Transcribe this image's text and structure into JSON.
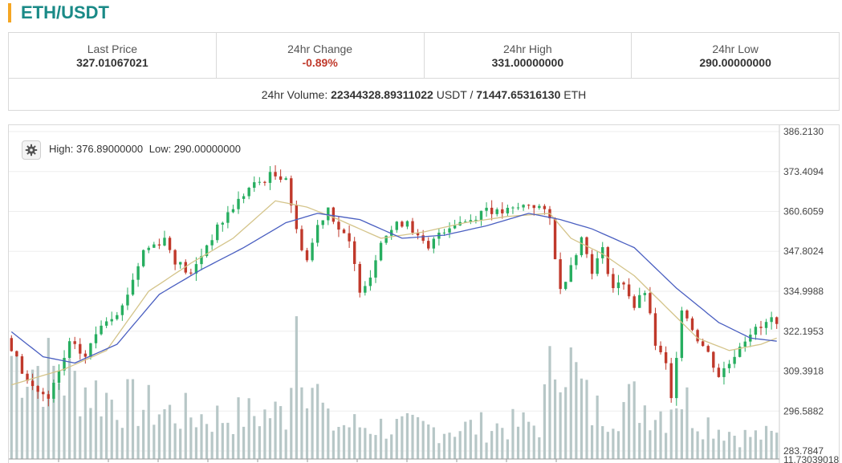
{
  "header": {
    "pair": "ETH/USDT",
    "accent_color": "#f5a623",
    "title_color": "#1a8a87"
  },
  "stats": {
    "last_price_label": "Last Price",
    "last_price_value": "327.01067021",
    "change_label": "24hr Change",
    "change_value": "-0.89%",
    "high_label": "24hr High",
    "high_value": "331.00000000",
    "low_label": "24hr Low",
    "low_value": "290.00000000"
  },
  "volume": {
    "label": "24hr Volume:",
    "usdt_value": "22344328.89311022",
    "usdt_unit": "USDT /",
    "eth_value": "71447.65316130",
    "eth_unit": "ETH"
  },
  "chart": {
    "settings_icon": "gear-icon",
    "high_text": "High: 376.89000000",
    "low_text": "Low: 290.00000000",
    "y_ticks": [
      "386.2130",
      "373.4094",
      "360.6059",
      "347.8024",
      "334.9988",
      "322.1953",
      "309.3918",
      "296.5882",
      "283.7847"
    ],
    "bottom_tick": "11.73039018",
    "colors": {
      "up": "#27ae60",
      "down": "#c0392b",
      "ma_fast": "#d4c48a",
      "ma_slow": "#4a5fc1",
      "volume": "#b7c7c7"
    }
  },
  "chart_data": {
    "type": "candlestick",
    "title": "ETH/USDT",
    "y_range": [
      283.7847,
      386.213
    ],
    "y_tick_values": [
      386.213,
      373.4094,
      360.6059,
      347.8024,
      334.9988,
      322.1953,
      309.3918,
      296.5882,
      283.7847
    ],
    "high": 376.89,
    "low": 290.0,
    "price_path": [
      [
        0,
        320
      ],
      [
        4,
        306
      ],
      [
        8,
        300
      ],
      [
        12,
        318
      ],
      [
        15,
        314
      ],
      [
        18,
        325
      ],
      [
        22,
        330
      ],
      [
        26,
        348
      ],
      [
        30,
        352
      ],
      [
        32,
        345
      ],
      [
        35,
        340
      ],
      [
        38,
        350
      ],
      [
        42,
        360
      ],
      [
        46,
        368
      ],
      [
        50,
        372
      ],
      [
        53,
        372
      ],
      [
        55,
        354
      ],
      [
        57,
        345
      ],
      [
        59,
        356
      ],
      [
        61,
        362
      ],
      [
        63,
        355
      ],
      [
        65,
        350
      ],
      [
        67,
        336
      ],
      [
        69,
        340
      ],
      [
        71,
        352
      ],
      [
        74,
        356
      ],
      [
        76,
        358
      ],
      [
        78,
        352
      ],
      [
        80,
        348
      ],
      [
        82,
        354
      ],
      [
        85,
        357
      ],
      [
        88,
        358
      ],
      [
        91,
        362
      ],
      [
        93,
        360
      ],
      [
        96,
        361
      ],
      [
        99,
        363
      ],
      [
        101,
        362
      ],
      [
        103,
        358
      ],
      [
        105,
        335
      ],
      [
        107,
        344
      ],
      [
        109,
        352
      ],
      [
        111,
        342
      ],
      [
        113,
        348
      ],
      [
        115,
        336
      ],
      [
        117,
        338
      ],
      [
        119,
        330
      ],
      [
        121,
        335
      ],
      [
        123,
        318
      ],
      [
        125,
        311
      ],
      [
        126,
        300
      ],
      [
        128,
        330
      ],
      [
        131,
        320
      ],
      [
        133,
        315
      ],
      [
        135,
        308
      ],
      [
        137,
        312
      ],
      [
        139,
        318
      ],
      [
        141,
        322
      ],
      [
        143,
        323
      ],
      [
        145,
        326
      ]
    ],
    "ma_fast_path": [
      [
        0,
        305
      ],
      [
        10,
        310
      ],
      [
        18,
        316
      ],
      [
        26,
        335
      ],
      [
        34,
        344
      ],
      [
        42,
        352
      ],
      [
        50,
        364
      ],
      [
        56,
        362
      ],
      [
        62,
        358
      ],
      [
        70,
        352
      ],
      [
        78,
        354
      ],
      [
        86,
        357
      ],
      [
        94,
        359
      ],
      [
        102,
        360
      ],
      [
        106,
        352
      ],
      [
        112,
        347
      ],
      [
        118,
        340
      ],
      [
        124,
        330
      ],
      [
        130,
        320
      ],
      [
        136,
        316
      ],
      [
        142,
        318
      ],
      [
        145,
        320
      ]
    ],
    "ma_slow_path": [
      [
        0,
        322
      ],
      [
        6,
        314
      ],
      [
        12,
        312
      ],
      [
        20,
        318
      ],
      [
        28,
        334
      ],
      [
        36,
        342
      ],
      [
        44,
        349
      ],
      [
        52,
        357
      ],
      [
        58,
        360
      ],
      [
        66,
        358
      ],
      [
        74,
        352
      ],
      [
        82,
        353
      ],
      [
        90,
        356
      ],
      [
        98,
        360
      ],
      [
        104,
        358
      ],
      [
        110,
        355
      ],
      [
        118,
        349
      ],
      [
        126,
        336
      ],
      [
        134,
        325
      ],
      [
        140,
        320
      ],
      [
        145,
        319
      ]
    ],
    "volume_path": [
      [
        0,
        0.45
      ],
      [
        10,
        0.35
      ],
      [
        20,
        0.25
      ],
      [
        30,
        0.2
      ],
      [
        38,
        0.18
      ],
      [
        52,
        0.2
      ],
      [
        54,
        0.65
      ],
      [
        56,
        0.4
      ],
      [
        60,
        0.15
      ],
      [
        80,
        0.13
      ],
      [
        100,
        0.15
      ],
      [
        104,
        0.55
      ],
      [
        106,
        0.4
      ],
      [
        110,
        0.2
      ],
      [
        118,
        0.25
      ],
      [
        124,
        0.2
      ],
      [
        126,
        0.3
      ],
      [
        130,
        0.18
      ],
      [
        138,
        0.1
      ],
      [
        145,
        0.1
      ]
    ],
    "candles": 146
  }
}
